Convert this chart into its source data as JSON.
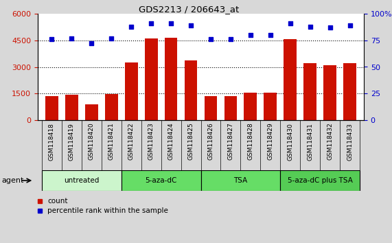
{
  "title": "GDS2213 / 206643_at",
  "samples": [
    "GSM118418",
    "GSM118419",
    "GSM118420",
    "GSM118421",
    "GSM118422",
    "GSM118423",
    "GSM118424",
    "GSM118425",
    "GSM118426",
    "GSM118427",
    "GSM118428",
    "GSM118429",
    "GSM118430",
    "GSM118431",
    "GSM118432",
    "GSM118433"
  ],
  "counts": [
    1350,
    1430,
    900,
    1480,
    3250,
    4620,
    4640,
    3380,
    1370,
    1370,
    1560,
    1540,
    4550,
    3200,
    3080,
    3220
  ],
  "percentiles": [
    76,
    77,
    72,
    77,
    88,
    91,
    91,
    89,
    76,
    76,
    80,
    80,
    91,
    88,
    87,
    89
  ],
  "bar_color": "#cc1100",
  "dot_color": "#0000cc",
  "ylim_left": [
    0,
    6000
  ],
  "ylim_right": [
    0,
    100
  ],
  "yticks_left": [
    0,
    1500,
    3000,
    4500,
    6000
  ],
  "yticks_right": [
    0,
    25,
    50,
    75,
    100
  ],
  "groups": [
    {
      "label": "untreated",
      "start": 0,
      "end": 3,
      "color": "#ccf5cc"
    },
    {
      "label": "5-aza-dC",
      "start": 4,
      "end": 7,
      "color": "#66dd66"
    },
    {
      "label": "TSA",
      "start": 8,
      "end": 11,
      "color": "#66dd66"
    },
    {
      "label": "5-aza-dC plus TSA",
      "start": 12,
      "end": 15,
      "color": "#55cc55"
    }
  ],
  "agent_label": "agent",
  "legend_count_label": "count",
  "legend_percentile_label": "percentile rank within the sample",
  "bg_color": "#d8d8d8",
  "plot_bg_color": "#ffffff",
  "left_axis_color": "#cc1100",
  "right_axis_color": "#0000cc",
  "xtick_bg_color": "#cccccc",
  "group_border_color": "#000000"
}
